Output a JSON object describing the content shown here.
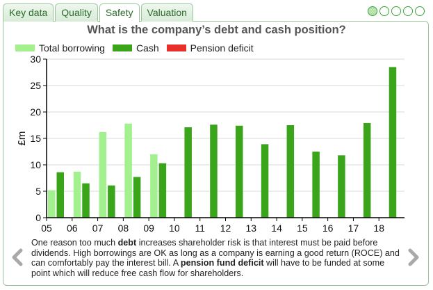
{
  "tabs": [
    {
      "label": "Key data",
      "active": false
    },
    {
      "label": "Quality",
      "active": false
    },
    {
      "label": "Safety",
      "active": true
    },
    {
      "label": "Valuation",
      "active": false
    }
  ],
  "pager": {
    "count": 5,
    "active_index": 0
  },
  "colors": {
    "total_borrowing": "#a2f08e",
    "cash": "#3aa41a",
    "pension_deficit": "#e8302a"
  },
  "description": {
    "p1": "One reason too much ",
    "b1": "debt",
    "p2": " increases shareholder risk is that interest must be paid before dividends. High borrowings are OK as long as a company is earning a good return (ROCE) and can comfortably pay the interest bill. A ",
    "b2": "pension fund deficit",
    "p3": " will have to be funded at some point which will reduce free cash flow for shareholders."
  },
  "nav": {
    "prev_icon": "chevron-left-icon",
    "next_icon": "chevron-right-icon"
  },
  "chart_data": {
    "type": "bar",
    "title": "What is the company’s debt and cash position?",
    "ylabel": "£m",
    "xlabel": "",
    "ylim": [
      0,
      30
    ],
    "yticks": [
      0,
      5,
      10,
      15,
      20,
      25,
      30
    ],
    "categories": [
      "05",
      "06",
      "07",
      "08",
      "09",
      "10",
      "11",
      "12",
      "13",
      "14",
      "15",
      "16",
      "17",
      "18"
    ],
    "legend_position": "top-left",
    "series": [
      {
        "name": "Total borrowing",
        "values": [
          5.2,
          8.7,
          16.2,
          17.8,
          12.0,
          0,
          0,
          0,
          0,
          0,
          0,
          0,
          0,
          0
        ]
      },
      {
        "name": "Cash",
        "values": [
          8.6,
          6.5,
          6.1,
          7.7,
          10.3,
          17.1,
          17.6,
          17.4,
          13.9,
          17.5,
          12.5,
          11.8,
          17.9,
          28.5
        ]
      },
      {
        "name": "Pension deficit",
        "values": [
          0,
          0,
          0,
          0,
          0,
          0,
          0,
          0,
          0,
          0,
          0,
          0,
          0,
          0
        ]
      }
    ]
  }
}
